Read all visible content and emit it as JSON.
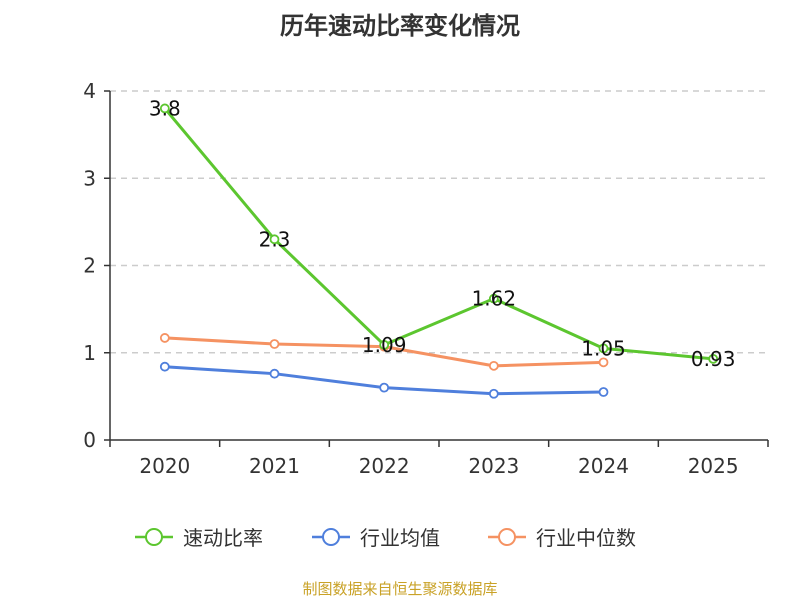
{
  "title": "历年速动比率变化情况",
  "source": "制图数据来自恒生聚源数据库",
  "colors": {
    "sudong": "#5cc62f",
    "avg": "#4f7fdc",
    "median": "#f59262",
    "source": "#c9a227",
    "grid": "#cccccc",
    "axis": "#333333"
  },
  "chart_data": {
    "type": "line",
    "title": "历年速动比率变化情况",
    "categories": [
      "2020",
      "2021",
      "2022",
      "2023",
      "2024",
      "2025"
    ],
    "ylim": [
      0,
      4
    ],
    "yticks": [
      0,
      1,
      2,
      3,
      4
    ],
    "grid": true,
    "legend_position": "bottom",
    "series": [
      {
        "name": "速动比率",
        "values": [
          3.8,
          2.3,
          1.09,
          1.62,
          1.05,
          0.93
        ],
        "labels": [
          "3.8",
          "2.3",
          "1.09",
          "1.62",
          "1.05",
          "0.93"
        ]
      },
      {
        "name": "行业均值",
        "values": [
          0.84,
          0.76,
          0.6,
          0.53,
          0.55,
          null
        ]
      },
      {
        "name": "行业中位数",
        "values": [
          1.17,
          1.1,
          1.07,
          0.85,
          0.89,
          null
        ]
      }
    ]
  }
}
